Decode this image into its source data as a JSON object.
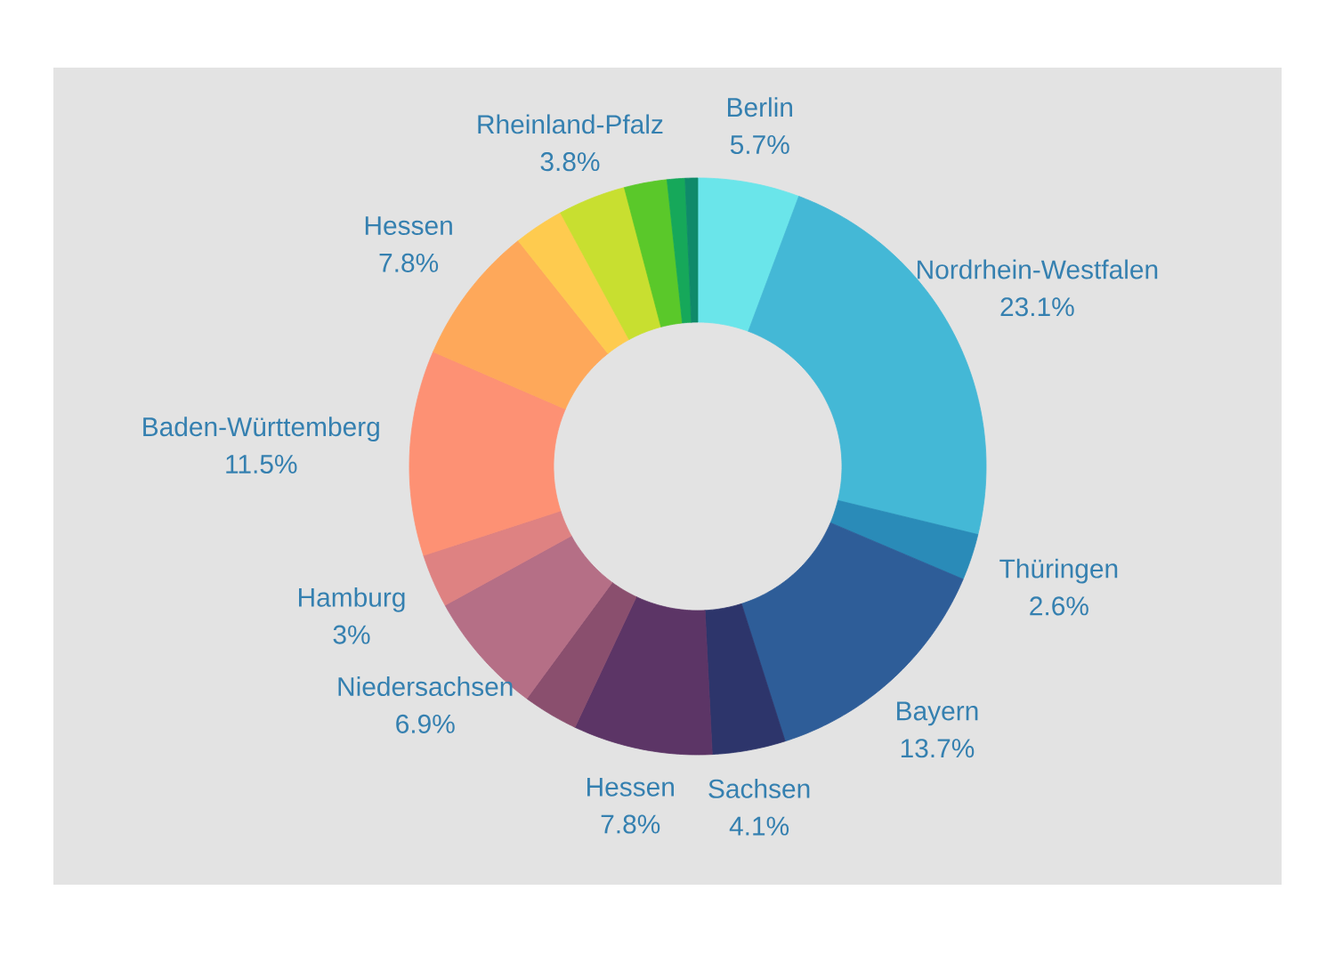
{
  "chart_data": {
    "type": "donut",
    "categories": [
      "Berlin",
      "Nordrhein-Westfalen",
      "Thüringen",
      "Bayern",
      "Sachsen",
      "Hessen",
      null,
      "Niedersachsen",
      "Hamburg",
      "Baden-Württemberg",
      "Hessen",
      null,
      "Rheinland-Pfalz",
      null,
      null,
      null
    ],
    "values": [
      5.7,
      23.1,
      2.6,
      13.7,
      4.1,
      7.8,
      3.1,
      6.9,
      3,
      11.5,
      7.8,
      2.8,
      3.8,
      2.4,
      1.0,
      0.7
    ],
    "value_labels": [
      "5.7%",
      "23.1%",
      "2.6%",
      "13.7%",
      "4.1%",
      "7.8%",
      null,
      "6.9%",
      "3%",
      "11.5%",
      "7.8%",
      null,
      "3.8%",
      null,
      null,
      null
    ],
    "colors": [
      "#6ae5ea",
      "#44b8d6",
      "#2a8bb8",
      "#2e5d98",
      "#2d356b",
      "#5c3566",
      "#8a4f6e",
      "#b56f86",
      "#de8282",
      "#fd9174",
      "#fea85a",
      "#fecb4f",
      "#c8df30",
      "#5ac82a",
      "#16a85a",
      "#0f8a6a"
    ]
  }
}
